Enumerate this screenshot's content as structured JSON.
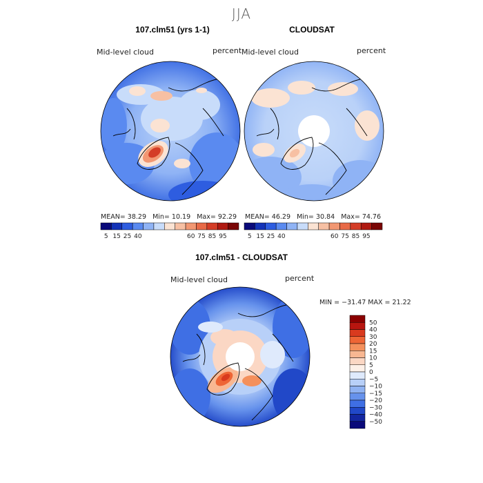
{
  "season": "JJA",
  "panels": [
    {
      "title": "107.clm51 (yrs 1-1)",
      "variable": "Mid-level cloud",
      "units": "percent",
      "stats": {
        "mean_label": "MEAN=",
        "mean": "38.29",
        "min_label": "Min=",
        "min": "10.19",
        "max_label": "Max=",
        "max": "92.29"
      }
    },
    {
      "title": "CLOUDSAT",
      "variable": "Mid-level cloud",
      "units": "percent",
      "stats": {
        "mean_label": "MEAN=",
        "mean": "46.29",
        "min_label": "Min=",
        "min": "30.84",
        "max_label": "Max=",
        "max": "74.76"
      }
    }
  ],
  "abs_colorbar": {
    "labels": [
      "5",
      "15",
      "25",
      "40",
      "60",
      "75",
      "85",
      "95"
    ],
    "colors": [
      "#0a0a7a",
      "#1433b8",
      "#2e5de0",
      "#5a8af0",
      "#8fb3f5",
      "#c8dcfa",
      "#fbe3d3",
      "#f7c0a3",
      "#f29772",
      "#e86a47",
      "#d43d27",
      "#b01a12",
      "#7a0605"
    ]
  },
  "diff": {
    "title": "107.clm51 - CLOUDSAT",
    "variable": "Mid-level cloud",
    "units": "percent",
    "minmax": "MIN = −31.47  MAX =   21.22",
    "colorbar_labels": [
      "50",
      "40",
      "30",
      "20",
      "15",
      "10",
      "5",
      "0",
      "−5",
      "−10",
      "−15",
      "−20",
      "−30",
      "−40",
      "−50"
    ],
    "colorbar_colors": [
      "#8b0000",
      "#b8150f",
      "#d93a1e",
      "#ee6535",
      "#f4905c",
      "#f8b792",
      "#fbd7c4",
      "#fdf0e8",
      "#dfeafc",
      "#b8d0f8",
      "#8fb2f2",
      "#6692ec",
      "#3f6fe4",
      "#2148c8",
      "#1326a0",
      "#0a0a7a"
    ]
  }
}
